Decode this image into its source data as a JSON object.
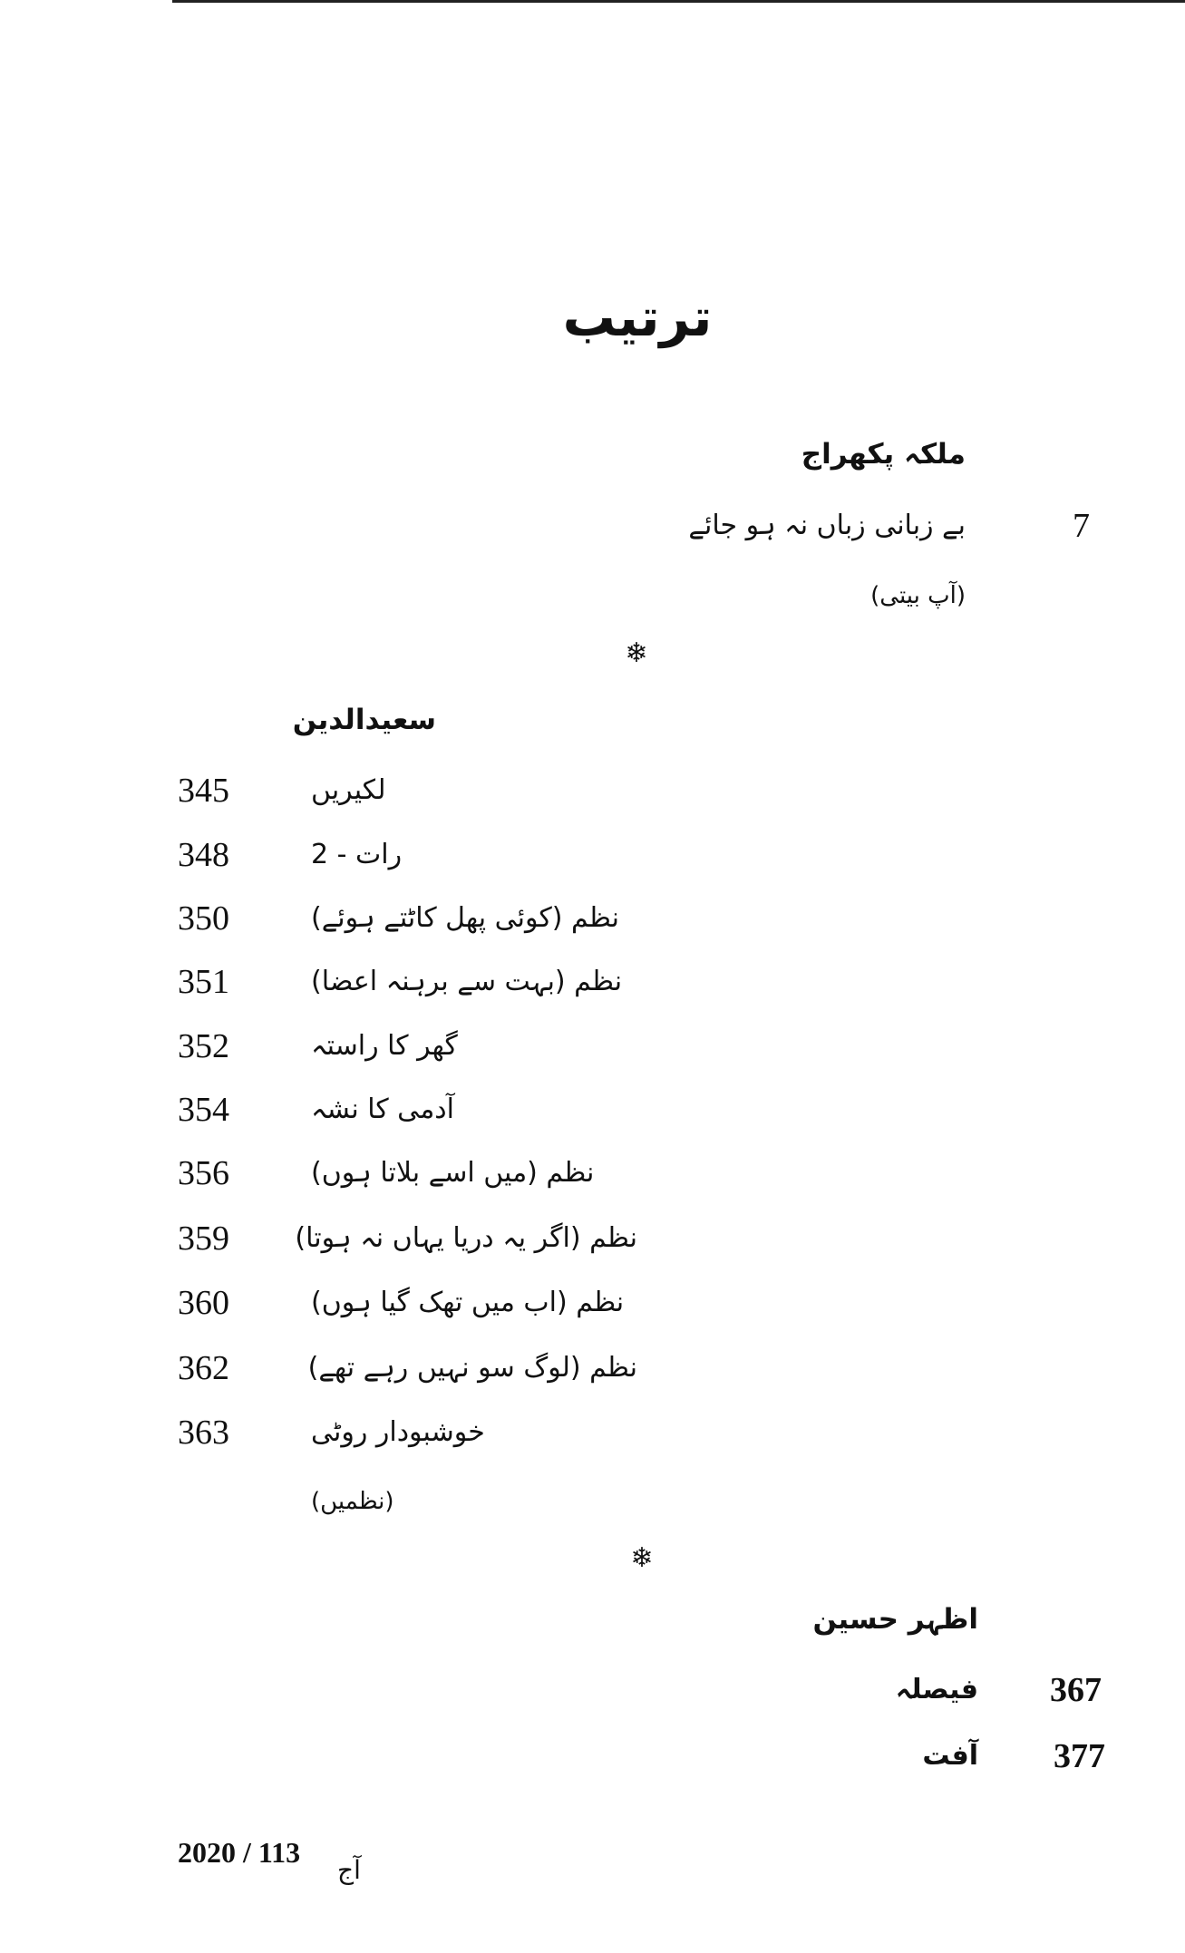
{
  "page_title": "ترتیب",
  "sections": [
    {
      "author": "ملکہ پکھراج",
      "entries": [
        {
          "page": "7",
          "title": "بے زبانی زباں نہ ہو جائے"
        }
      ],
      "genre": "(آپ بیتی)"
    },
    {
      "author": "سعیدالدین",
      "entries": [
        {
          "page": "345",
          "title": "لکیریں"
        },
        {
          "page": "348",
          "title": "رات - 2"
        },
        {
          "page": "350",
          "title": "نظم (کوئی پھل کاٹتے ہوئے)"
        },
        {
          "page": "351",
          "title": "نظم (بہت سے برہنہ اعضا)"
        },
        {
          "page": "352",
          "title": "گھر کا راستہ"
        },
        {
          "page": "354",
          "title": "آدمی کا نشہ"
        },
        {
          "page": "356",
          "title": "نظم (میں اسے بلاتا ہوں)"
        },
        {
          "page": "359",
          "title": "نظم (اگر یہ دریا یہاں نہ ہوتا)"
        },
        {
          "page": "360",
          "title": "نظم (اب میں تھک گیا ہوں)"
        },
        {
          "page": "362",
          "title": "نظم (لوگ سو نہیں رہے تھے)"
        },
        {
          "page": "363",
          "title": "خوشبودار روٹی"
        }
      ],
      "genre": "(نظمیں)"
    },
    {
      "author": "اظہر حسین",
      "entries": [
        {
          "page": "367",
          "title": "فیصلہ"
        },
        {
          "page": "377",
          "title": "آفت"
        }
      ]
    }
  ],
  "separator_icon": "snowflake-ornament",
  "footer": {
    "issue": "2020 / 113",
    "magazine": "آج"
  }
}
